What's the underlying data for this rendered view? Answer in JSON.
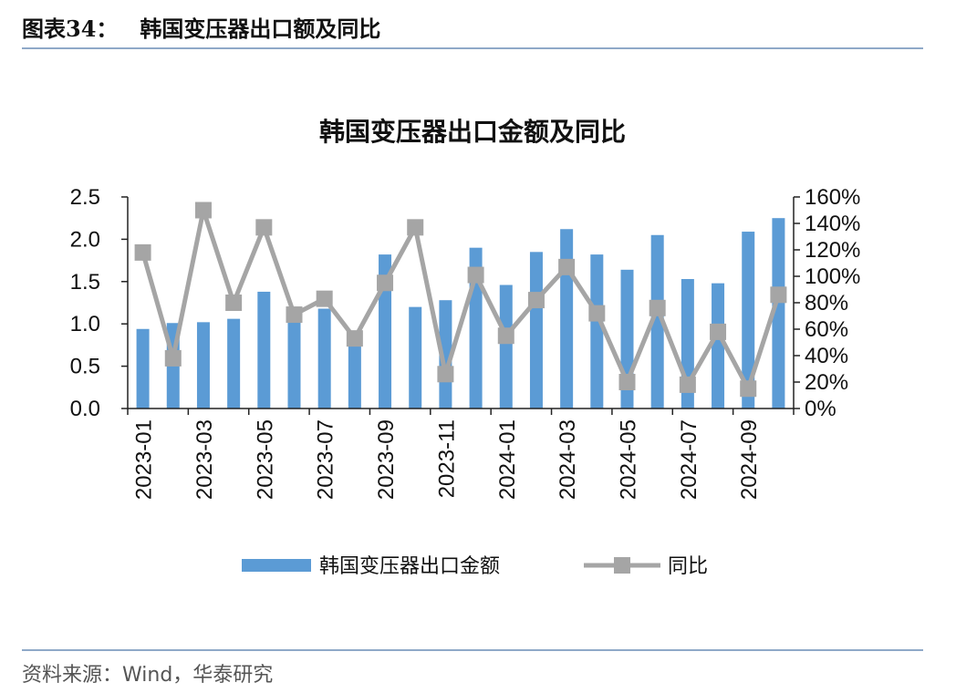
{
  "header": {
    "figure_label": "图表34：",
    "title": "韩国变压器出口额及同比"
  },
  "source": "资料来源：Wind，华泰研究",
  "colors": {
    "bar": "#5b9bd5",
    "line": "#a5a5a5",
    "rule": "#8fa9c8"
  },
  "chart_data": {
    "type": "bar",
    "title": "韩国变压器出口金额及同比",
    "categories": [
      "2023-01",
      "2023-02",
      "2023-03",
      "2023-04",
      "2023-05",
      "2023-06",
      "2023-07",
      "2023-08",
      "2023-09",
      "2023-10",
      "2023-11",
      "2023-12",
      "2024-01",
      "2024-02",
      "2024-03",
      "2024-04",
      "2024-05",
      "2024-06",
      "2024-07",
      "2024-08",
      "2024-09",
      "2024-10"
    ],
    "x_tick_labels": [
      "2023-01",
      "2023-03",
      "2023-05",
      "2023-07",
      "2023-09",
      "2023-11",
      "2024-01",
      "2024-03",
      "2024-05",
      "2024-07",
      "2024-09"
    ],
    "series": [
      {
        "name": "韩国变压器出口金额",
        "type": "bar",
        "axis": "left",
        "values": [
          0.94,
          1.01,
          1.02,
          1.06,
          1.38,
          1.08,
          1.18,
          0.82,
          1.82,
          1.2,
          1.28,
          1.9,
          1.46,
          1.85,
          2.12,
          1.82,
          1.64,
          2.05,
          1.53,
          1.48,
          2.09,
          2.25
        ]
      },
      {
        "name": "同比",
        "type": "line",
        "axis": "right",
        "values": [
          118,
          38,
          150,
          80,
          137,
          71,
          83,
          53,
          95,
          137,
          26,
          101,
          55,
          82,
          107,
          72,
          20,
          76,
          18,
          58,
          15,
          86
        ]
      }
    ],
    "y_left": {
      "min": 0,
      "max": 2.5,
      "ticks": [
        "0.0",
        "0.5",
        "1.0",
        "1.5",
        "2.0",
        "2.5"
      ]
    },
    "y_right": {
      "min": 0,
      "max": 160,
      "ticks": [
        "0%",
        "20%",
        "40%",
        "60%",
        "80%",
        "100%",
        "120%",
        "140%",
        "160%"
      ]
    },
    "grid": false,
    "legend_position": "bottom"
  }
}
